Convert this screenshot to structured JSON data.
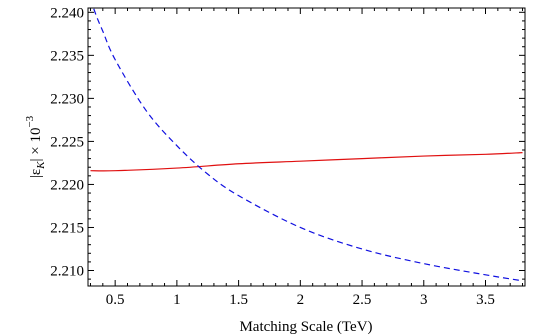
{
  "chart_data": {
    "type": "line",
    "title": "",
    "xlabel": "Matching Scale (TeV)",
    "ylabel_symbol": "|ε",
    "ylabel_subscript": "K",
    "ylabel_suffix": "| × 10",
    "ylabel_exponent": "−3",
    "xlim": [
      0.28,
      3.82
    ],
    "ylim": [
      2.2082,
      2.2405
    ],
    "x_ticks": [
      0.5,
      1,
      1.5,
      2,
      2.5,
      3,
      3.5
    ],
    "x_tick_labels": [
      "0.5",
      "1",
      "1.5",
      "2",
      "2.5",
      "3",
      "3.5"
    ],
    "y_ticks": [
      2.21,
      2.215,
      2.22,
      2.225,
      2.23,
      2.235,
      2.24
    ],
    "y_tick_labels": [
      "2.210",
      "2.215",
      "2.220",
      "2.225",
      "2.230",
      "2.235",
      "2.240"
    ],
    "grid": false,
    "legend": "none",
    "series": [
      {
        "color": "#e01010",
        "style": "solid",
        "x": [
          0.3,
          0.5,
          1.0,
          1.5,
          2.0,
          2.5,
          3.0,
          3.5,
          3.8
        ],
        "y": [
          2.2216,
          2.2216,
          2.2219,
          2.2224,
          2.2227,
          2.223,
          2.2233,
          2.2235,
          2.2237
        ]
      },
      {
        "color": "#1010e0",
        "style": "dashed",
        "x": [
          0.3,
          0.35,
          0.4,
          0.5,
          0.75,
          1.0,
          1.25,
          1.5,
          2.0,
          2.5,
          3.0,
          3.5,
          3.8
        ],
        "y": [
          2.2415,
          2.2395,
          2.2378,
          2.2345,
          2.2286,
          2.2245,
          2.2212,
          2.2187,
          2.215,
          2.2125,
          2.2108,
          2.2095,
          2.2088
        ]
      }
    ]
  }
}
